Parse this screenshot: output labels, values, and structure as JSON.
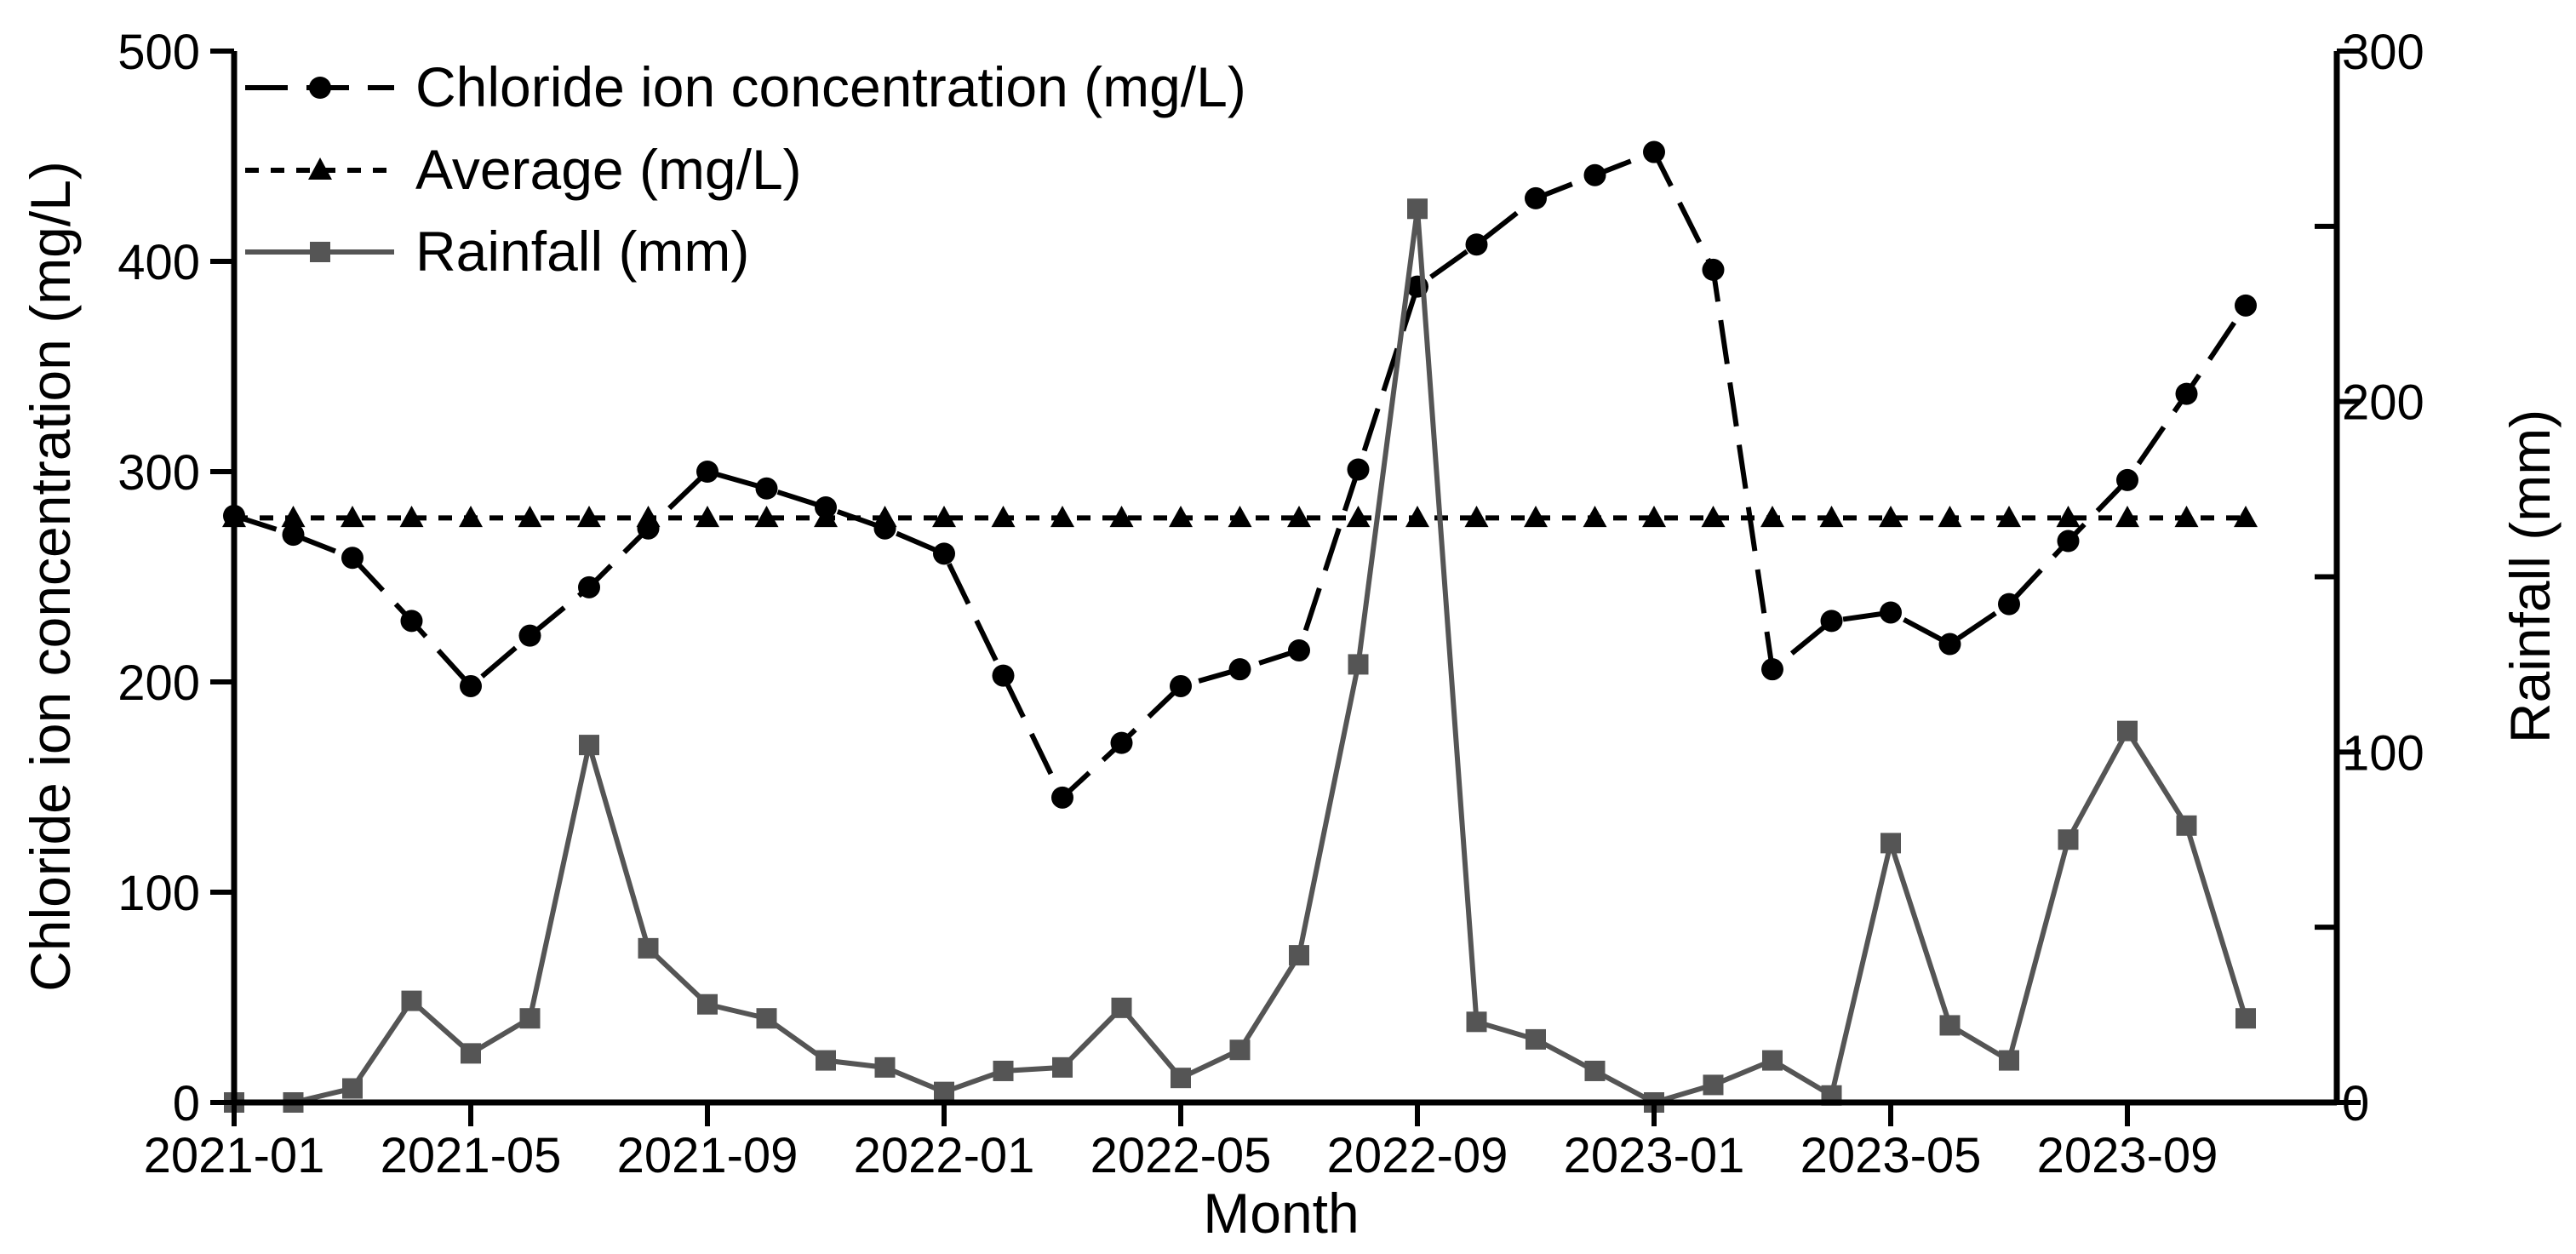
{
  "chart_data": {
    "type": "line",
    "title": "",
    "xlabel": "Month",
    "ylabel": "Chloride ion concentration (mg/L)",
    "y2label": "Rainfall (mm)",
    "ylim": [
      0,
      500
    ],
    "y2lim": [
      0,
      300
    ],
    "yticks": [
      "0",
      "100",
      "200",
      "300",
      "400",
      "500"
    ],
    "y2ticks": [
      "0",
      "100",
      "200",
      "300"
    ],
    "xticks": [
      "2021-01",
      "2021-05",
      "2021-09",
      "2022-01",
      "2022-05",
      "2022-09",
      "2023-01",
      "2023-05",
      "2023-09"
    ],
    "months": [
      "2021-01",
      "2021-02",
      "2021-03",
      "2021-04",
      "2021-05",
      "2021-06",
      "2021-07",
      "2021-08",
      "2021-09",
      "2021-10",
      "2021-11",
      "2021-12",
      "2022-01",
      "2022-02",
      "2022-03",
      "2022-04",
      "2022-05",
      "2022-06",
      "2022-07",
      "2022-08",
      "2022-09",
      "2022-10",
      "2022-11",
      "2022-12",
      "2023-01",
      "2023-02",
      "2023-03",
      "2023-04",
      "2023-05",
      "2023-06",
      "2023-07",
      "2023-08",
      "2023-09",
      "2023-10",
      "2023-11"
    ],
    "legend_position": "top-left",
    "series": [
      {
        "name": "Chloride ion concentration (mg/L)",
        "axis": "left",
        "style": "dashed",
        "marker": "circle",
        "color": "#000000",
        "values": [
          279,
          270,
          259,
          229,
          198,
          222,
          245,
          273,
          300,
          292,
          283,
          273,
          261,
          203,
          145,
          171,
          198,
          206,
          215,
          301,
          388,
          408,
          430,
          441,
          452,
          396,
          206,
          229,
          233,
          218,
          237,
          267,
          296,
          337,
          379
        ]
      },
      {
        "name": "Average (mg/L)",
        "axis": "left",
        "style": "dotted",
        "marker": "triangle",
        "color": "#000000",
        "values": [
          278,
          278,
          278,
          278,
          278,
          278,
          278,
          278,
          278,
          278,
          278,
          278,
          278,
          278,
          278,
          278,
          278,
          278,
          278,
          278,
          278,
          278,
          278,
          278,
          278,
          278,
          278,
          278,
          278,
          278,
          278,
          278,
          278,
          278,
          278
        ]
      },
      {
        "name": "Rainfall (mm)",
        "axis": "right",
        "style": "solid",
        "marker": "square",
        "color": "#555555",
        "values": [
          0,
          0,
          4,
          29,
          14,
          24,
          102,
          44,
          28,
          24,
          12,
          10,
          3,
          9,
          10,
          27,
          7,
          15,
          42,
          125,
          255,
          23,
          18,
          9,
          0,
          5,
          12,
          2,
          74,
          22,
          12,
          75,
          106,
          79,
          24
        ]
      }
    ]
  }
}
